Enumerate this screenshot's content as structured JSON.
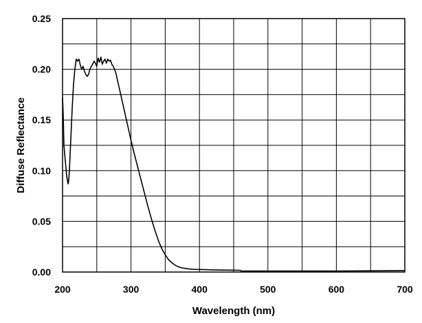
{
  "chart_data": {
    "type": "line",
    "title": "",
    "xlabel": "Wavelength (nm)",
    "ylabel": "Diffuse Reflectance",
    "xlim": [
      200,
      700
    ],
    "ylim": [
      0,
      0.25
    ],
    "x_major_ticks": [
      200,
      300,
      400,
      500,
      600,
      700
    ],
    "x_tick_labels": [
      "200",
      "300",
      "400",
      "500",
      "600",
      "700"
    ],
    "y_ticks": [
      0,
      0.05,
      0.1,
      0.15,
      0.2,
      0.25
    ],
    "y_tick_labels": [
      "0.00",
      "0.05",
      "0.10",
      "0.15",
      "0.20",
      "0.25"
    ],
    "grid": true,
    "x_grid_step": 50,
    "y_grid_step": 0.025,
    "legend": "none",
    "line_color": "#000000",
    "series": [
      {
        "x": [
          200,
          201,
          202,
          204,
          206,
          208,
          209,
          210,
          212,
          214,
          216,
          218,
          219,
          220,
          222,
          224,
          226,
          228,
          230,
          232,
          234,
          236,
          238,
          240,
          242,
          244,
          246,
          248,
          250,
          252,
          254,
          256,
          258,
          260,
          262,
          264,
          266,
          268,
          270,
          272,
          274,
          276,
          278,
          280,
          285,
          290,
          295,
          300,
          305,
          310,
          315,
          320,
          325,
          330,
          335,
          340,
          345,
          350,
          355,
          360,
          365,
          370,
          375,
          380,
          385,
          390,
          395,
          400,
          410,
          420,
          430,
          440,
          450,
          460,
          461,
          480,
          500,
          550,
          600,
          650,
          700
        ],
        "y": [
          0.172,
          0.155,
          0.125,
          0.11,
          0.095,
          0.087,
          0.09,
          0.1,
          0.13,
          0.16,
          0.185,
          0.2,
          0.205,
          0.21,
          0.208,
          0.21,
          0.204,
          0.2,
          0.203,
          0.198,
          0.195,
          0.193,
          0.195,
          0.2,
          0.203,
          0.205,
          0.208,
          0.206,
          0.203,
          0.211,
          0.207,
          0.212,
          0.205,
          0.208,
          0.21,
          0.206,
          0.21,
          0.208,
          0.209,
          0.205,
          0.203,
          0.2,
          0.196,
          0.19,
          0.175,
          0.16,
          0.145,
          0.13,
          0.116,
          0.103,
          0.09,
          0.077,
          0.064,
          0.052,
          0.041,
          0.031,
          0.023,
          0.017,
          0.012,
          0.009,
          0.0065,
          0.005,
          0.004,
          0.0035,
          0.003,
          0.0028,
          0.0026,
          0.0025,
          0.0023,
          0.0021,
          0.002,
          0.0019,
          0.0018,
          0.0017,
          0.001,
          0.001,
          0.001,
          0.001,
          0.001,
          0.0012,
          0.0015
        ]
      }
    ]
  }
}
